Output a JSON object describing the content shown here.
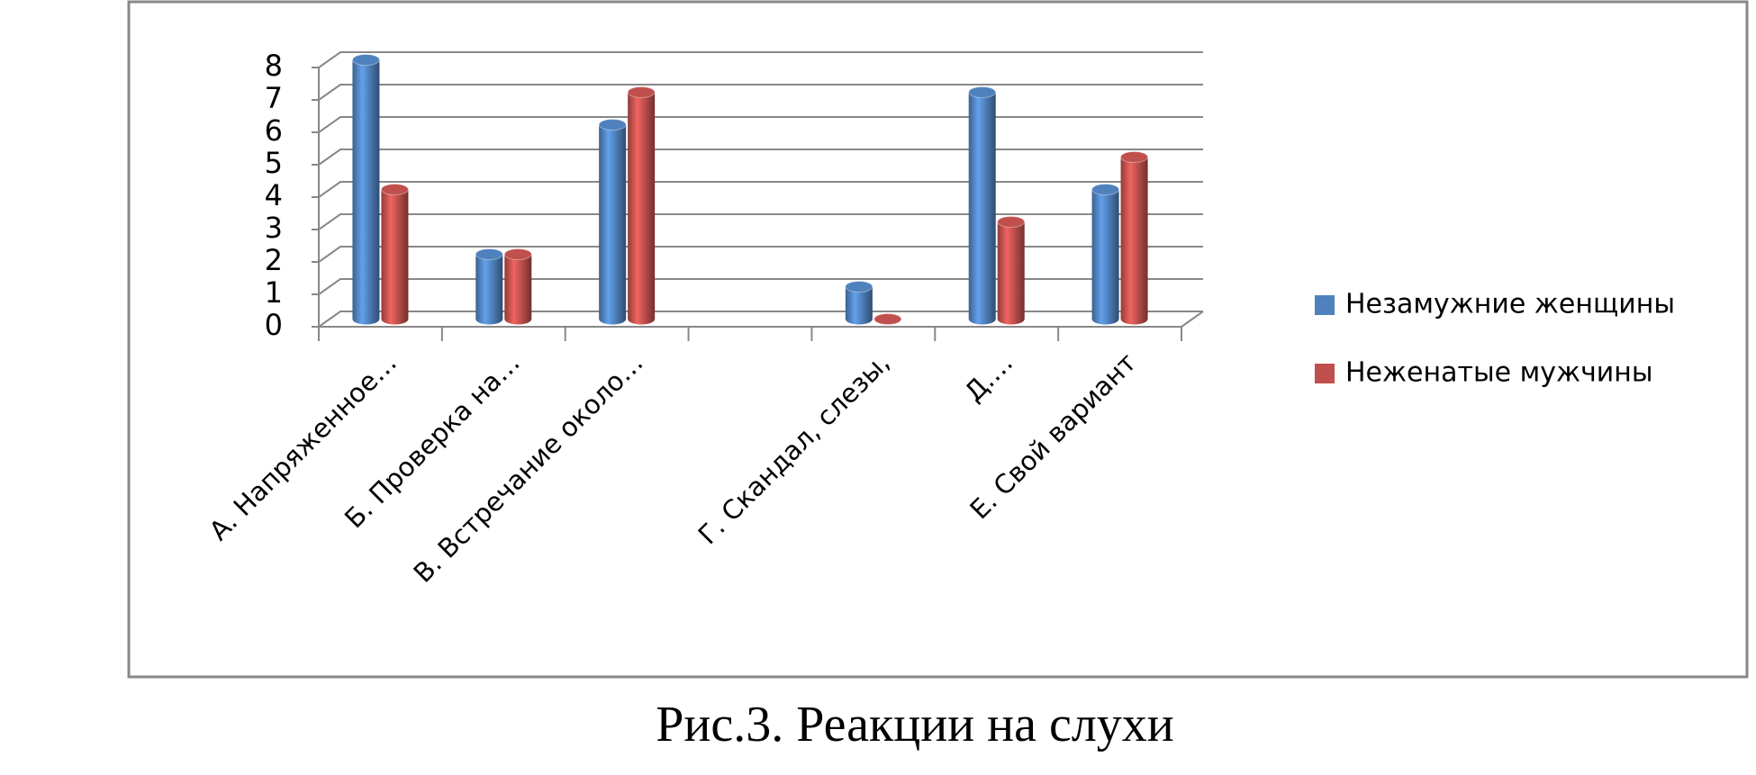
{
  "chart_data": {
    "type": "bar",
    "caption": "Рис.3. Реакции на слухи",
    "categories": [
      "А. Напряженное…",
      "Б. Проверка на…",
      "В. Встречание около…",
      null,
      "Г. Скандал, слезы,",
      "Д.…",
      "Е. Свой вариант"
    ],
    "series": [
      {
        "name": "Незамужние женщины",
        "color": "#4f81bd",
        "values": [
          8,
          2,
          6,
          null,
          1,
          7,
          4
        ]
      },
      {
        "name": "Неженатые мужчины",
        "color": "#c0504d",
        "values": [
          4,
          2,
          7,
          null,
          0,
          3,
          5
        ]
      }
    ],
    "ylim": [
      0,
      8
    ],
    "yticks": [
      0,
      1,
      2,
      3,
      4,
      5,
      6,
      7,
      8
    ],
    "grid": true,
    "legend": "right"
  }
}
